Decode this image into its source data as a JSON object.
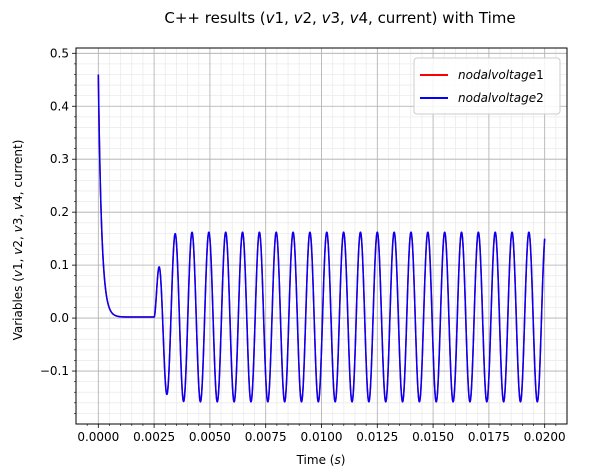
{
  "chart_data": {
    "type": "line",
    "title_parts": [
      {
        "t": "C++ results (",
        "i": false
      },
      {
        "t": "v",
        "i": true
      },
      {
        "t": "1, ",
        "i": false
      },
      {
        "t": "v",
        "i": true
      },
      {
        "t": "2, ",
        "i": false
      },
      {
        "t": "v",
        "i": true
      },
      {
        "t": "3, ",
        "i": false
      },
      {
        "t": "v",
        "i": true
      },
      {
        "t": "4, current) with Time",
        "i": false
      }
    ],
    "xlabel_parts": [
      {
        "t": "Time (",
        "i": false
      },
      {
        "t": "s",
        "i": true
      },
      {
        "t": ")",
        "i": false
      }
    ],
    "ylabel_parts": [
      {
        "t": "Variables (",
        "i": false
      },
      {
        "t": "v",
        "i": true
      },
      {
        "t": "1, ",
        "i": false
      },
      {
        "t": "v",
        "i": true
      },
      {
        "t": "2, ",
        "i": false
      },
      {
        "t": "v",
        "i": true
      },
      {
        "t": "3, ",
        "i": false
      },
      {
        "t": "v",
        "i": true
      },
      {
        "t": "4, current)",
        "i": false
      }
    ],
    "xlim": [
      -0.001,
      0.021
    ],
    "ylim": [
      -0.2,
      0.51
    ],
    "xticks": [
      0,
      0.0025,
      0.005,
      0.0075,
      0.01,
      0.0125,
      0.015,
      0.0175,
      0.02
    ],
    "xtick_labels": [
      "0.0000",
      "0.0025",
      "0.0050",
      "0.0075",
      "0.0100",
      "0.0125",
      "0.0150",
      "0.0175",
      "0.0200"
    ],
    "yticks": [
      -0.1,
      0,
      0.1,
      0.2,
      0.3,
      0.4,
      0.5
    ],
    "ytick_labels": [
      "−0.1",
      "0.0",
      "0.1",
      "0.2",
      "0.3",
      "0.4",
      "0.5"
    ],
    "grid": true,
    "legend_position": "top-right",
    "series": [
      {
        "name": "nodalvoltage1",
        "color": "#ff0000",
        "model": {
          "t_end": 0.02,
          "y0": 0.46,
          "decay_tau": 0.00015,
          "steady": 0.002,
          "onset": 0.0025,
          "freq_hz": 1325,
          "mid": 0.002,
          "amplitude": 0.16,
          "ramp": 0.0007
        }
      },
      {
        "name": "nodalvoltage2",
        "color": "#0000ff",
        "model": {
          "t_end": 0.02,
          "y0": 0.46,
          "decay_tau": 0.00015,
          "steady": 0.002,
          "onset": 0.0025,
          "freq_hz": 1325,
          "mid": 0.002,
          "amplitude": 0.16,
          "ramp": 0.0007
        }
      }
    ],
    "legend_entries": [
      {
        "label": "nodalvoltage",
        "suffix": "1",
        "color": "#ff0000"
      },
      {
        "label": "nodalvoltage",
        "suffix": "2",
        "color": "#0000ff"
      }
    ]
  }
}
